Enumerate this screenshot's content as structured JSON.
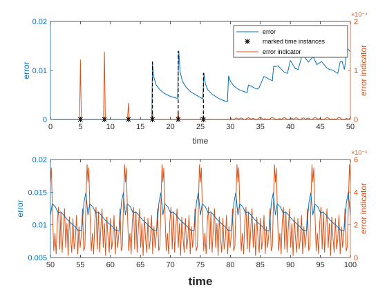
{
  "chart_data": [
    {
      "type": "line",
      "title": "",
      "xlabel": "time",
      "xlim": [
        0,
        50
      ],
      "xticks": [
        0,
        5,
        10,
        15,
        20,
        25,
        30,
        35,
        40,
        45,
        50
      ],
      "ylabel_left": "error",
      "ylim_left": [
        0,
        0.02
      ],
      "yticks_left": [
        0,
        0.01,
        0.02
      ],
      "ytick_labels_left": [
        "0",
        "0.01",
        "0.02"
      ],
      "ylabel_right": "error indicator",
      "ylim_right": [
        0,
        2
      ],
      "yticks_right": [
        0,
        1,
        2
      ],
      "y_right_exponent": "×10⁻⁴",
      "grid": false,
      "legend": {
        "location": "top-right",
        "entries": [
          "error",
          "marked time instances",
          "error indicator"
        ]
      },
      "colors": {
        "error": "#0072BD",
        "indicator": "#D95319",
        "markers": "#000000",
        "axis_left": "#0072BD",
        "axis_right": "#D95319"
      },
      "series": [
        {
          "name": "error",
          "axis": "left",
          "x": [
            0,
            16.9,
            17.0,
            17.2,
            17.6,
            18.2,
            19,
            20,
            21.2,
            21.4,
            21.6,
            22,
            22.6,
            23.4,
            24.4,
            25.4,
            25.6,
            25.8,
            26.2,
            27,
            28,
            29,
            29.5,
            29.7,
            30,
            30.6,
            31.4,
            32.2,
            32.8,
            33,
            33.5,
            34,
            34.5,
            34.8,
            35.6,
            36.5,
            37,
            37.2,
            38,
            39,
            39.5,
            40,
            40.8,
            41.3,
            42,
            43,
            43.8,
            44.4,
            45.2,
            46,
            46.5,
            47,
            47.5,
            47.9,
            48.3,
            48.6,
            49,
            49.5,
            50
          ],
          "y": [
            0,
            0,
            0.0118,
            0.0088,
            0.0071,
            0.0061,
            0.0053,
            0.0047,
            0.0043,
            0.014,
            0.0098,
            0.0078,
            0.0066,
            0.0056,
            0.0049,
            0.0042,
            0.0095,
            0.0074,
            0.0061,
            0.0051,
            0.0043,
            0.0038,
            0.0036,
            0.0089,
            0.0078,
            0.0068,
            0.0061,
            0.0057,
            0.0055,
            0.007,
            0.0068,
            0.0064,
            0.0062,
            0.0065,
            0.0088,
            0.0082,
            0.0079,
            0.0108,
            0.0109,
            0.0096,
            0.0094,
            0.012,
            0.0104,
            0.0102,
            0.0133,
            0.0117,
            0.0128,
            0.0112,
            0.0118,
            0.0106,
            0.0102,
            0.0101,
            0.0097,
            0.0094,
            0.0118,
            0.0119,
            0.0102,
            0.0145,
            0.0138
          ]
        },
        {
          "name": "error indicator",
          "axis": "right",
          "spikes": [
            {
              "x": 5.0,
              "y": 1.22
            },
            {
              "x": 9.0,
              "y": 1.38
            },
            {
              "x": 13.0,
              "y": 0.34
            },
            {
              "x": 17.0,
              "y": 0.16
            },
            {
              "x": 21.3,
              "y": 0.16
            },
            {
              "x": 25.5,
              "y": 0.09
            }
          ],
          "late_ripple_range": [
            30,
            50
          ],
          "late_ripple_amplitude": 0.04
        },
        {
          "name": "marked time instances",
          "axis": "left",
          "marker": "asterisk",
          "x": [
            5.0,
            9.0,
            13.0,
            17.0,
            21.3,
            25.5
          ],
          "y": [
            0,
            0,
            0,
            0,
            0,
            0
          ]
        }
      ],
      "dashed_verticals": [
        {
          "x": 17.0,
          "y_from": 0,
          "y_to": 0.0118
        },
        {
          "x": 21.3,
          "y_from": 0,
          "y_to": 0.014
        },
        {
          "x": 25.5,
          "y_from": 0,
          "y_to": 0.0095
        }
      ]
    },
    {
      "type": "line",
      "title": "",
      "xlabel": "time",
      "xlim": [
        50,
        100
      ],
      "xticks": [
        50,
        55,
        60,
        65,
        70,
        75,
        80,
        85,
        90,
        95,
        100
      ],
      "ylabel_left": "error",
      "ylim_left": [
        0.005,
        0.02
      ],
      "yticks_left": [
        0.005,
        0.01,
        0.015,
        0.02
      ],
      "ytick_labels_left": [
        "0.005",
        "0.01",
        "0.015",
        "0.02"
      ],
      "ylabel_right": "error indicator",
      "ylim_right": [
        0,
        6
      ],
      "yticks_right": [
        0,
        2,
        4,
        6
      ],
      "y_right_exponent": "×10⁻⁶",
      "grid": false,
      "colors": {
        "error": "#0072BD",
        "indicator": "#D95319",
        "axis_left": "#0072BD",
        "axis_right": "#D95319"
      },
      "period": 6.25,
      "series": [
        {
          "name": "error",
          "axis": "left",
          "x_cycle": [
            0,
            0.3,
            0.8,
            1.3,
            1.7,
            2.2,
            2.8,
            3.4,
            4.0,
            4.6,
            5.2,
            5.6,
            5.9,
            6.25
          ],
          "y_cycle": [
            0.0115,
            0.0132,
            0.0128,
            0.0118,
            0.012,
            0.0115,
            0.0108,
            0.0103,
            0.0098,
            0.0092,
            0.0091,
            0.0135,
            0.0149,
            0.0115
          ],
          "x_start": 50
        },
        {
          "name": "error indicator",
          "axis": "right",
          "x_cycle": [
            0,
            0.15,
            0.35,
            0.55,
            0.75,
            0.95,
            1.15,
            1.35,
            1.55,
            1.75,
            1.95,
            2.15,
            2.35,
            2.55,
            2.75,
            2.95,
            3.15,
            3.35,
            3.55,
            3.75,
            3.95,
            4.15,
            4.35,
            4.55,
            4.75,
            4.95,
            5.15,
            5.35,
            5.55,
            5.75,
            5.95,
            6.1,
            6.25
          ],
          "y_cycle": [
            4.6,
            5.5,
            2.6,
            0.4,
            1.5,
            0.2,
            2.2,
            3.1,
            0.5,
            2.8,
            0.3,
            1.8,
            3.0,
            0.6,
            2.1,
            0.1,
            2.5,
            1.2,
            0.3,
            2.4,
            0.5,
            1.1,
            2.6,
            0.2,
            1.9,
            0.6,
            1.4,
            3.0,
            0.4,
            0.7,
            3.8,
            5.7,
            4.6
          ],
          "x_start": 50
        }
      ]
    }
  ]
}
